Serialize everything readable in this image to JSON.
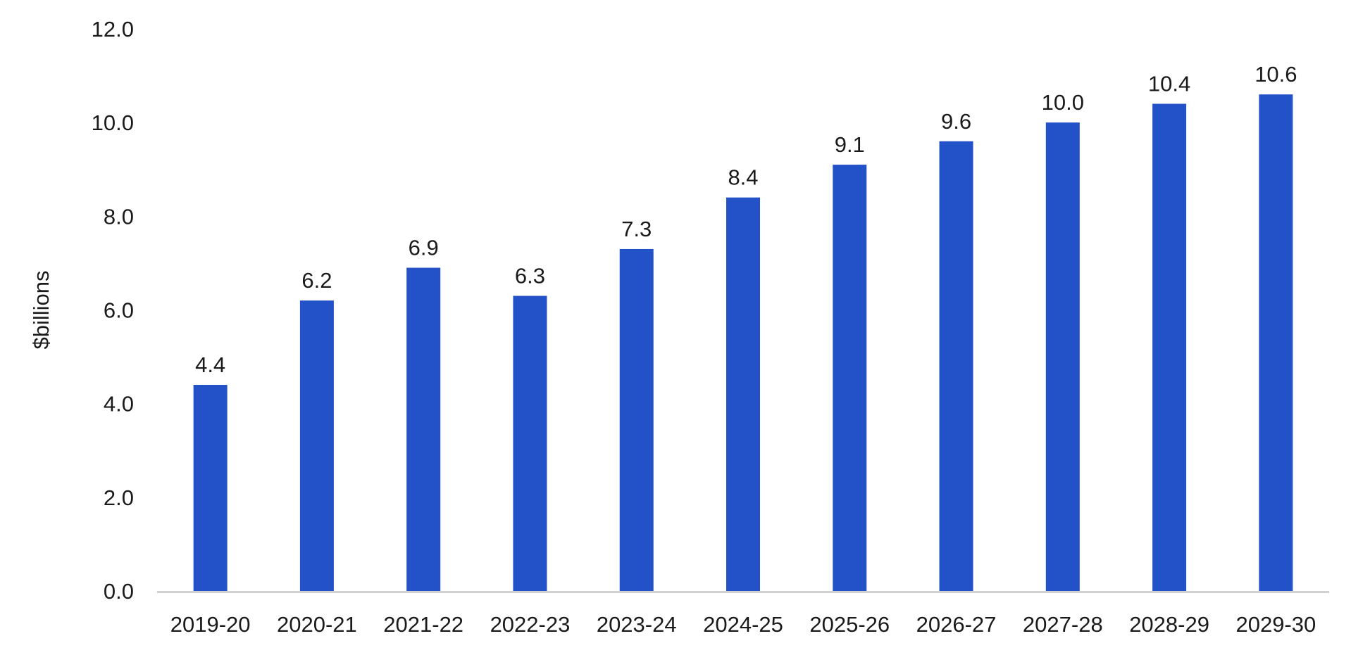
{
  "chart_data": {
    "type": "bar",
    "title": "",
    "xlabel": "",
    "ylabel": "$billions",
    "categories": [
      "2019-20",
      "2020-21",
      "2021-22",
      "2022-23",
      "2023-24",
      "2024-25",
      "2025-26",
      "2026-27",
      "2027-28",
      "2028-29",
      "2029-30"
    ],
    "series": [
      {
        "values": [
          4.4,
          6.2,
          6.9,
          6.3,
          7.3,
          8.4,
          9.1,
          9.6,
          10.0,
          10.4,
          10.6
        ],
        "labels": [
          "4.4",
          "6.2",
          "6.9",
          "6.3",
          "7.3",
          "8.4",
          "9.1",
          "9.6",
          "10.0",
          "10.4",
          "10.6"
        ],
        "color": "#2251c8"
      }
    ],
    "ylim": [
      0,
      12
    ],
    "yticks": [
      "0.0",
      "2.0",
      "4.0",
      "6.0",
      "8.0",
      "10.0",
      "12.0"
    ],
    "grid": false,
    "legend": "none",
    "axis_color": "#d0d0d0"
  }
}
